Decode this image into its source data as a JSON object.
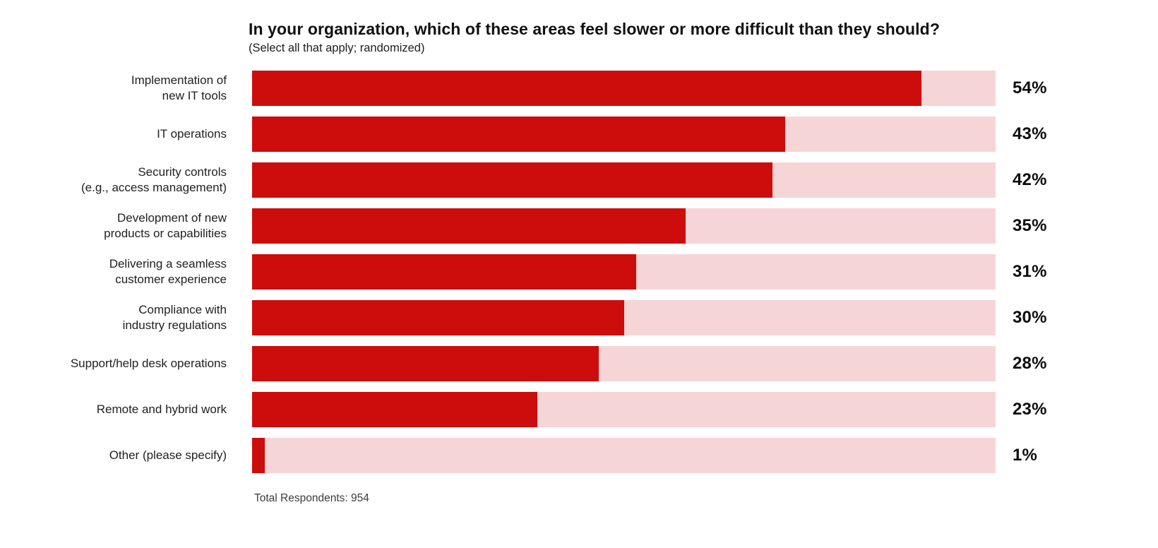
{
  "header": {
    "title": "In your organization, which of these areas feel slower or more difficult than they should?",
    "subtitle": "(Select all that apply; randomized)"
  },
  "footnote": "Total Respondents: 954",
  "chart_data": {
    "type": "bar",
    "orientation": "horizontal",
    "title": "In your organization, which of these areas feel slower or more difficult than they should?",
    "subtitle": "(Select all that apply; randomized)",
    "note": "Total Respondents: 954",
    "categories": [
      "Implementation of\nnew IT tools",
      "IT operations",
      "Security controls\n(e.g., access management)",
      "Development of new\nproducts or capabilities",
      "Delivering a seamless\ncustomer experience",
      "Compliance with\nindustry regulations",
      "Support/help desk operations",
      "Remote and hybrid work",
      "Other (please specify)"
    ],
    "values": [
      54,
      43,
      42,
      35,
      31,
      30,
      28,
      23,
      1
    ],
    "value_labels": [
      "54%",
      "43%",
      "42%",
      "35%",
      "31%",
      "30%",
      "28%",
      "23%",
      "1%"
    ],
    "xlim": [
      0,
      60
    ],
    "grid": false,
    "legend": false,
    "colors": {
      "bar_fill": "#cd0c0c",
      "bar_track": "#f6d5d7",
      "title_text": "#111111",
      "label_text": "#212121",
      "value_text": "#0d0d0d"
    }
  }
}
